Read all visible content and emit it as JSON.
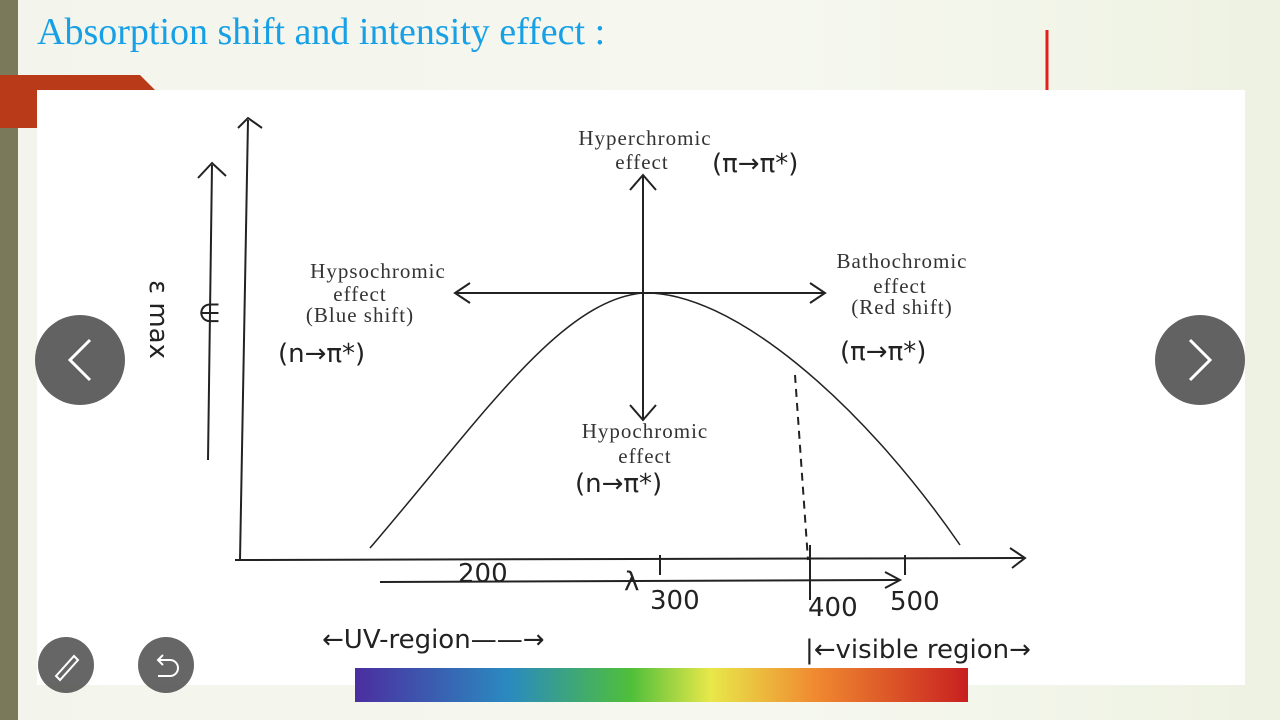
{
  "slide": {
    "title": "Absorption shift and intensity effect :",
    "diagram": {
      "hyperchromic": {
        "label": "Hyperchromic",
        "effect": "effect",
        "transition": "(π→π*)"
      },
      "hypsochromic": {
        "label": "Hypsochromic",
        "effect": "effect",
        "shift": "(Blue shift)",
        "transition": "(n→π*)"
      },
      "bathochromic": {
        "label": "Bathochromic",
        "effect": "effect",
        "shift": "(Red shift)",
        "transition": "(π→π*)"
      },
      "hypochromic": {
        "label": "Hypochromic",
        "effect": "effect",
        "transition": "(n→π*)"
      },
      "y_axis_label": "ε max",
      "y_arrow_label": "∈",
      "x_axis_label": "λ",
      "x_ticks": [
        "200",
        "300",
        "400",
        "500"
      ],
      "uv_region": "←UV-region——→",
      "visible_region": "|←visible region→"
    }
  }
}
